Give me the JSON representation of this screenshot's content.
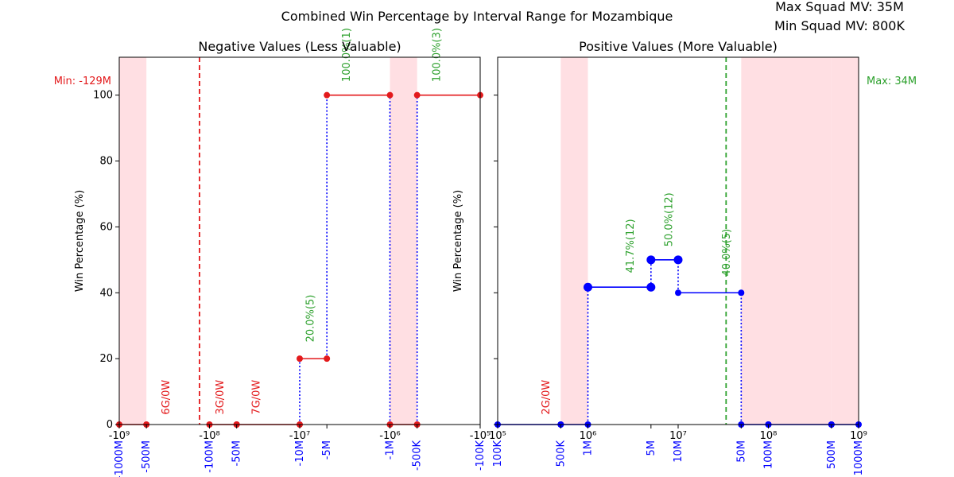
{
  "figure": {
    "suptitle": "Combined Win Percentage by Interval Range for Mozambique",
    "info_max": "Max Squad MV: 35M",
    "info_min": "Min Squad MV: 800K"
  },
  "chart_data": [
    {
      "type": "line",
      "title": "Negative Values (Less Valuable)",
      "ylabel": "Win Percentage (%)",
      "xscale": "symlog",
      "xlim": [
        -1000000000,
        -100000
      ],
      "ylim": [
        0,
        100
      ],
      "yticks": [
        0,
        20,
        40,
        60,
        80,
        100
      ],
      "xticks": [
        {
          "value": -1000000000,
          "label": "-10⁹",
          "sub_label": "-1000M"
        },
        {
          "value": -500000000,
          "label": "",
          "sub_label": "-500M"
        },
        {
          "value": -100000000,
          "label": "-10⁸",
          "sub_label": "-100M"
        },
        {
          "value": -50000000,
          "label": "",
          "sub_label": "-50M"
        },
        {
          "value": -10000000,
          "label": "-10⁷",
          "sub_label": "-10M"
        },
        {
          "value": -5000000,
          "label": "",
          "sub_label": "-5M"
        },
        {
          "value": -1000000,
          "label": "-10⁶",
          "sub_label": "-1M"
        },
        {
          "value": -500000,
          "label": "",
          "sub_label": "-500K"
        },
        {
          "value": -100000,
          "label": "-10⁵",
          "sub_label": "-100K"
        }
      ],
      "shaded": [
        [
          -1000000000,
          -500000000
        ],
        [
          -1000000,
          -500000
        ]
      ],
      "threshold": {
        "value": -129000000,
        "label": "Min: -129M",
        "color": "#e31a1c"
      },
      "segments": [
        {
          "x": [
            -1000000000,
            -500000000
          ],
          "y": [
            0,
            0
          ]
        },
        {
          "x": [
            -100000000,
            -50000000
          ],
          "y": [
            0,
            0
          ]
        },
        {
          "x": [
            -50000000,
            -10000000
          ],
          "y": [
            0,
            0
          ]
        },
        {
          "x": [
            -10000000,
            -5000000
          ],
          "y": [
            20,
            20
          ]
        },
        {
          "x": [
            -5000000,
            -1000000
          ],
          "y": [
            100,
            100
          ]
        },
        {
          "x": [
            -1000000,
            -500000
          ],
          "y": [
            0,
            0
          ]
        },
        {
          "x": [
            -500000,
            -100000
          ],
          "y": [
            100,
            100
          ]
        }
      ],
      "connectors": [
        {
          "x": -10000000,
          "y": [
            0,
            20
          ]
        },
        {
          "x": -5000000,
          "y": [
            20,
            100
          ]
        },
        {
          "x": -1000000,
          "y": [
            0,
            100
          ]
        },
        {
          "x": -500000,
          "y": [
            0,
            100
          ]
        }
      ],
      "annotations": [
        {
          "x": -300000000,
          "y": 3,
          "text": "6G/0W",
          "color": "#e31a1c"
        },
        {
          "x": -75000000,
          "y": 3,
          "text": "3G/0W",
          "color": "#e31a1c"
        },
        {
          "x": -30000000,
          "y": 3,
          "text": "7G/0W",
          "color": "#e31a1c"
        },
        {
          "x": -7500000,
          "y": 25,
          "text": "20.0%(5)",
          "color": "#2ca02c"
        },
        {
          "x": -3000000,
          "y": 104,
          "text": "100.0%(1)",
          "color": "#2ca02c"
        },
        {
          "x": -300000,
          "y": 104,
          "text": "100.0%(3)",
          "color": "#2ca02c"
        }
      ]
    },
    {
      "type": "line",
      "title": "Positive Values (More Valuable)",
      "ylabel": "Win Percentage (%)",
      "xscale": "log",
      "xlim": [
        100000,
        1000000000
      ],
      "ylim": [
        0,
        100
      ],
      "yticks": [
        0,
        20,
        40,
        60,
        80,
        100
      ],
      "xticks": [
        {
          "value": 100000,
          "label": "10⁵",
          "sub_label": "100K"
        },
        {
          "value": 500000,
          "label": "",
          "sub_label": "500K"
        },
        {
          "value": 1000000,
          "label": "10⁶",
          "sub_label": "1M"
        },
        {
          "value": 5000000,
          "label": "",
          "sub_label": "5M"
        },
        {
          "value": 10000000,
          "label": "10⁷",
          "sub_label": "10M"
        },
        {
          "value": 50000000,
          "label": "",
          "sub_label": "50M"
        },
        {
          "value": 100000000,
          "label": "10⁸",
          "sub_label": "100M"
        },
        {
          "value": 500000000,
          "label": "",
          "sub_label": "500M"
        },
        {
          "value": 1000000000,
          "label": "10⁹",
          "sub_label": "1000M"
        }
      ],
      "shaded": [
        [
          500000,
          1000000
        ],
        [
          50000000,
          100000000
        ],
        [
          100000000,
          500000000
        ],
        [
          500000000,
          1000000000
        ]
      ],
      "threshold": {
        "value": 34000000,
        "label": "Max: 34M",
        "color": "#2ca02c"
      },
      "segments": [
        {
          "x": [
            100000,
            500000
          ],
          "y": [
            0,
            0
          ]
        },
        {
          "x": [
            500000,
            1000000
          ],
          "y": [
            0,
            0
          ]
        },
        {
          "x": [
            1000000,
            5000000
          ],
          "y": [
            41.7,
            41.7
          ],
          "big": true
        },
        {
          "x": [
            5000000,
            10000000
          ],
          "y": [
            50,
            50
          ],
          "big": true
        },
        {
          "x": [
            10000000,
            50000000
          ],
          "y": [
            40,
            40
          ]
        },
        {
          "x": [
            50000000,
            100000000
          ],
          "y": [
            0,
            0
          ]
        },
        {
          "x": [
            100000000,
            500000000
          ],
          "y": [
            0,
            0
          ]
        },
        {
          "x": [
            500000000,
            1000000000
          ],
          "y": [
            0,
            0
          ]
        }
      ],
      "connectors": [
        {
          "x": 1000000,
          "y": [
            0,
            41.7
          ]
        },
        {
          "x": 5000000,
          "y": [
            41.7,
            50
          ]
        },
        {
          "x": 10000000,
          "y": [
            40,
            50
          ]
        },
        {
          "x": 50000000,
          "y": [
            0,
            40
          ]
        }
      ],
      "annotations": [
        {
          "x": 350000,
          "y": 3,
          "text": "2G/0W",
          "color": "#e31a1c"
        },
        {
          "x": 3000000,
          "y": 46,
          "text": "41.7%(12)",
          "color": "#2ca02c"
        },
        {
          "x": 8000000,
          "y": 54,
          "text": "50.0%(12)",
          "color": "#2ca02c"
        },
        {
          "x": 35000000,
          "y": 45,
          "text": "40.0%(5)",
          "color": "#2ca02c"
        }
      ]
    }
  ],
  "colors": {
    "neg_line": "#e31a1c",
    "pos_line": "#0000ff",
    "connector": "#0000ff",
    "shade": "#ffdbe0",
    "tick_sub_label": "#0000ff"
  }
}
